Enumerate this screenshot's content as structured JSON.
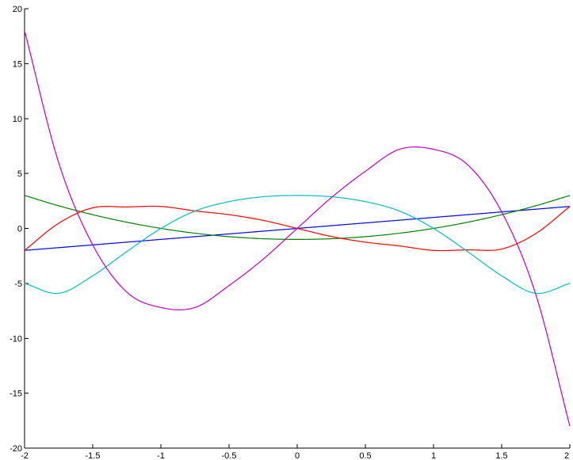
{
  "chart_data": {
    "type": "line",
    "title": "",
    "xlabel": "",
    "ylabel": "",
    "xlim": [
      -2,
      2
    ],
    "ylim": [
      -20,
      20
    ],
    "grid": false,
    "x_ticks": [
      -2,
      -1.5,
      -1,
      -0.5,
      0,
      0.5,
      1,
      1.5,
      2
    ],
    "x_tick_labels": [
      "-2",
      "-1.5",
      "-1",
      "-0.5",
      "0",
      "0.5",
      "1",
      "1.5",
      "2"
    ],
    "y_ticks": [
      -20,
      -15,
      -10,
      -5,
      0,
      5,
      10,
      15,
      20
    ],
    "y_tick_labels": [
      "-20",
      "-15",
      "-10",
      "-5",
      "0",
      "5",
      "10",
      "15",
      "20"
    ],
    "x": [
      -2,
      -1.75,
      -1.5,
      -1.25,
      -1,
      -0.75,
      -0.5,
      -0.25,
      0,
      0.25,
      0.5,
      0.75,
      1,
      1.25,
      1.5,
      1.75,
      2
    ],
    "series": [
      {
        "color": "#0000ff",
        "values": [
          -2,
          -1.75,
          -1.5,
          -1.25,
          -1,
          -0.75,
          -0.5,
          -0.25,
          0,
          0.25,
          0.5,
          0.75,
          1,
          1.25,
          1.5,
          1.75,
          2
        ]
      },
      {
        "color": "#008000",
        "values": [
          3,
          2.0625,
          1.25,
          0.5625,
          0,
          -0.4375,
          -0.75,
          -0.9375,
          -1,
          -0.9375,
          -0.75,
          -0.4375,
          0,
          0.5625,
          1.25,
          2.0625,
          3
        ]
      },
      {
        "color": "#ff0000",
        "values": [
          -2,
          0.4688,
          1.875,
          1.9531,
          2,
          1.5938,
          1.25,
          0.7344,
          0,
          -0.7344,
          -1.25,
          -1.5938,
          -2,
          -1.9531,
          -1.875,
          -0.4688,
          2
        ]
      },
      {
        "color": "#00bfbf",
        "values": [
          -5,
          -5.9063,
          -4.3125,
          -2.1094,
          0,
          1.582,
          2.4375,
          2.8828,
          3,
          2.8828,
          2.4375,
          1.582,
          0,
          -2.1094,
          -4.3125,
          -5.9063,
          -5
        ]
      },
      {
        "color": "#bf00bf",
        "values": [
          18,
          6.0,
          -1.5,
          -5.8,
          -7.2,
          -7.2,
          -5.2,
          -2.8,
          0,
          2.8,
          5.2,
          7.2,
          7.2,
          5.8,
          1.5,
          -6.0,
          -18
        ]
      }
    ]
  }
}
